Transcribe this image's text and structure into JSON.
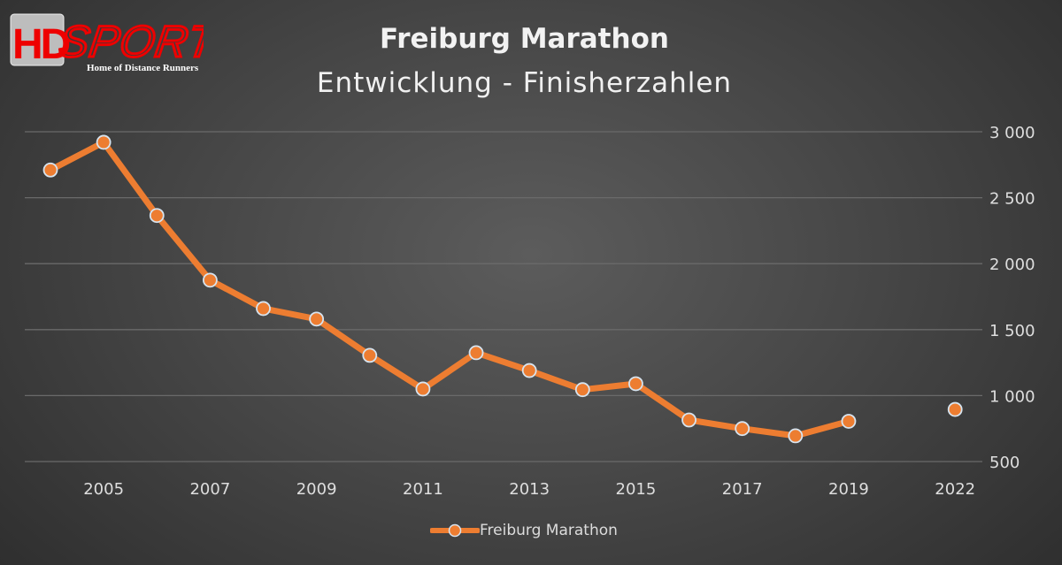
{
  "logo": {
    "brand": "HDSPORTS",
    "tagline": "Home of Distance Runners"
  },
  "chart_data": {
    "type": "line",
    "title": "Freiburg Marathon",
    "subtitle": "Entwicklung - Finisherzahlen",
    "categories": [
      "2004",
      "2005",
      "2006",
      "2007",
      "2008",
      "2009",
      "2010",
      "2011",
      "2012",
      "2013",
      "2014",
      "2015",
      "2016",
      "2017",
      "2018",
      "2019",
      "",
      "2022"
    ],
    "tick_labels_shown": [
      "2005",
      "2007",
      "2009",
      "2011",
      "2013",
      "2015",
      "2017",
      "2019",
      "2022"
    ],
    "series": [
      {
        "name": "Freiburg Marathon",
        "color": "#ed7d31",
        "values": [
          2710,
          2920,
          2365,
          1875,
          1660,
          1580,
          1305,
          1050,
          1325,
          1190,
          1045,
          1090,
          815,
          750,
          695,
          805,
          null,
          895
        ]
      }
    ],
    "ylim": [
      500,
      3000
    ],
    "y_ticks": [
      "500",
      "1 000",
      "1 500",
      "2 000",
      "2 500",
      "3 000"
    ],
    "y_axis_side": "right",
    "grid": true,
    "legend": "bottom",
    "xlabel": "",
    "ylabel": ""
  }
}
